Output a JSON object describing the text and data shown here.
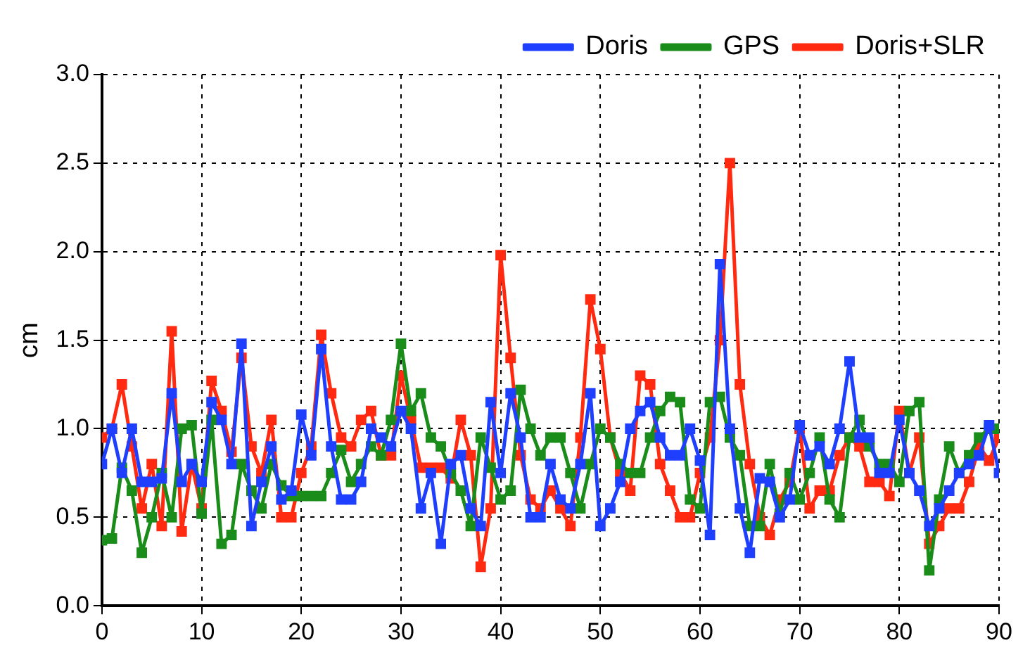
{
  "chart_data": {
    "type": "line",
    "ylabel": "cm",
    "marker": "square",
    "grid": true,
    "legend": "top right",
    "x": [
      0,
      1,
      2,
      3,
      4,
      5,
      6,
      7,
      8,
      9,
      10,
      11,
      12,
      13,
      14,
      15,
      16,
      17,
      18,
      19,
      20,
      21,
      22,
      23,
      24,
      25,
      26,
      27,
      28,
      29,
      30,
      31,
      32,
      33,
      34,
      35,
      36,
      37,
      38,
      39,
      40,
      41,
      42,
      43,
      44,
      45,
      46,
      47,
      48,
      49,
      50,
      51,
      52,
      53,
      54,
      55,
      56,
      57,
      58,
      59,
      60,
      61,
      62,
      63,
      64,
      65,
      66,
      67,
      68,
      69,
      70,
      71,
      72,
      73,
      74,
      75,
      76,
      77,
      78,
      79,
      80,
      81,
      82,
      83,
      84,
      85,
      86,
      87,
      88,
      89,
      90
    ],
    "xlim": [
      0,
      90
    ],
    "xticks": [
      0,
      10,
      20,
      30,
      40,
      50,
      60,
      70,
      80,
      90
    ],
    "ylim": [
      0,
      3
    ],
    "yticks": [
      {
        "value": 0,
        "label": "0.0"
      },
      {
        "value": 0.5,
        "label": "0.5"
      },
      {
        "value": 1,
        "label": "1.0"
      },
      {
        "value": 1.5,
        "label": "1.5"
      },
      {
        "value": 2,
        "label": "2.0"
      },
      {
        "value": 2.5,
        "label": "2.5"
      },
      {
        "value": 3,
        "label": "3.0"
      }
    ],
    "series": [
      {
        "name": "Doris",
        "color": "#1f3fff",
        "values": [
          0.8,
          1.0,
          0.75,
          1.0,
          0.7,
          0.7,
          0.72,
          1.2,
          0.7,
          0.8,
          0.7,
          1.15,
          1.05,
          0.8,
          1.48,
          0.45,
          0.7,
          0.9,
          0.6,
          0.65,
          1.08,
          0.85,
          1.45,
          0.9,
          0.6,
          0.6,
          0.7,
          1.0,
          0.95,
          0.9,
          1.1,
          1.0,
          0.55,
          0.75,
          0.35,
          0.8,
          0.85,
          0.55,
          0.45,
          1.15,
          0.75,
          1.2,
          0.95,
          0.5,
          0.5,
          0.8,
          0.6,
          0.55,
          0.8,
          1.2,
          0.45,
          0.55,
          0.7,
          1.0,
          1.1,
          1.15,
          0.95,
          0.85,
          0.85,
          1.0,
          0.82,
          0.4,
          1.93,
          1.0,
          0.55,
          0.3,
          0.72,
          0.7,
          0.5,
          0.6,
          1.02,
          0.85,
          0.9,
          0.8,
          1.0,
          1.38,
          0.95,
          0.95,
          0.75,
          0.75,
          1.05,
          0.75,
          0.65,
          0.45,
          0.55,
          0.65,
          0.75,
          0.8,
          0.85,
          1.02,
          0.75
        ]
      },
      {
        "name": "GPS",
        "color": "#1a8c1a",
        "values": [
          0.37,
          0.38,
          0.78,
          0.65,
          0.3,
          0.5,
          0.75,
          0.5,
          1.0,
          1.02,
          0.52,
          1.05,
          0.35,
          0.4,
          0.8,
          0.65,
          0.55,
          0.8,
          0.68,
          0.62,
          0.62,
          0.62,
          0.62,
          0.75,
          0.88,
          0.7,
          0.8,
          0.9,
          0.85,
          1.05,
          1.48,
          1.1,
          1.2,
          0.95,
          0.9,
          0.75,
          0.65,
          0.45,
          0.95,
          0.78,
          0.6,
          0.65,
          1.22,
          1.0,
          0.85,
          0.95,
          0.95,
          0.75,
          0.55,
          0.8,
          1.0,
          0.95,
          0.8,
          0.75,
          0.75,
          0.95,
          1.1,
          1.18,
          1.15,
          0.6,
          0.55,
          1.15,
          1.18,
          0.95,
          0.85,
          0.45,
          0.45,
          0.8,
          0.52,
          0.75,
          0.6,
          0.75,
          0.95,
          0.6,
          0.5,
          0.95,
          1.05,
          0.9,
          0.8,
          0.8,
          0.7,
          1.1,
          1.15,
          0.2,
          0.6,
          0.9,
          0.75,
          0.85,
          0.95,
          1.0,
          1.0
        ]
      },
      {
        "name": "Doris+SLR",
        "color": "#ff2a10",
        "values": [
          0.95,
          1.0,
          1.25,
          0.9,
          0.55,
          0.8,
          0.45,
          1.55,
          0.42,
          0.8,
          0.55,
          1.27,
          1.1,
          0.87,
          1.4,
          0.9,
          0.75,
          1.05,
          0.5,
          0.5,
          0.75,
          0.9,
          1.53,
          1.2,
          0.95,
          0.9,
          1.05,
          1.1,
          0.85,
          0.85,
          1.3,
          1.05,
          0.78,
          0.78,
          0.78,
          0.72,
          1.05,
          0.85,
          0.22,
          0.55,
          1.98,
          1.4,
          0.85,
          0.6,
          0.55,
          0.65,
          0.55,
          0.45,
          0.95,
          1.73,
          1.45,
          0.95,
          0.75,
          0.65,
          1.3,
          1.25,
          0.8,
          0.65,
          0.5,
          0.5,
          0.75,
          0.95,
          1.5,
          2.5,
          1.25,
          0.8,
          0.5,
          0.4,
          0.6,
          0.7,
          1.0,
          0.55,
          0.65,
          0.65,
          0.85,
          0.95,
          0.9,
          0.7,
          0.7,
          0.62,
          1.1,
          0.75,
          0.95,
          0.35,
          0.45,
          0.55,
          0.55,
          0.7,
          0.9,
          0.82,
          0.95
        ]
      }
    ]
  }
}
